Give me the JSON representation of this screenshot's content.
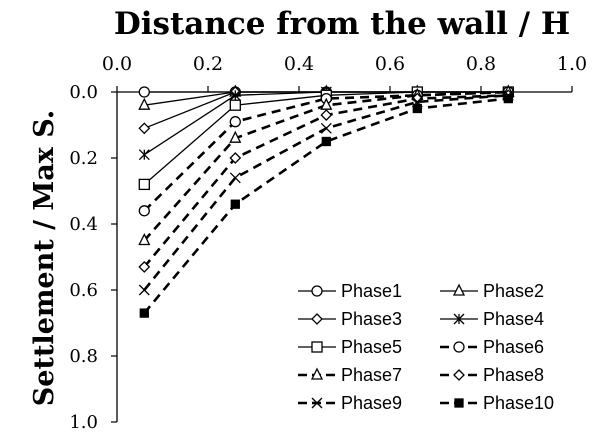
{
  "chart_data": {
    "type": "line",
    "title": "Distance from the wall / H",
    "xlabel": "Distance from the wall / H",
    "ylabel": "Settlement / Max S.",
    "xlim": [
      0.0,
      1.0
    ],
    "ylim": [
      0.0,
      1.0
    ],
    "x_axis_position": "top",
    "y_axis_inverted": true,
    "x_ticks": [
      "0.0",
      "0.2",
      "0.4",
      "0.6",
      "0.8",
      "1.0"
    ],
    "y_ticks": [
      "0.0",
      "0.2",
      "0.4",
      "0.6",
      "0.8",
      "1.0"
    ],
    "grid": false,
    "legend_position": "bottom-right",
    "x": [
      0.06,
      0.26,
      0.46,
      0.66,
      0.86
    ],
    "series": [
      {
        "name": "Phase1",
        "marker": "circle-open",
        "line": "solid",
        "values": [
          0.0,
          0.0,
          0.0,
          0.0,
          0.0
        ]
      },
      {
        "name": "Phase2",
        "marker": "triangle-open",
        "line": "solid",
        "values": [
          0.04,
          0.0,
          0.0,
          0.0,
          0.0
        ]
      },
      {
        "name": "Phase3",
        "marker": "diamond-open",
        "line": "solid",
        "values": [
          0.11,
          0.0,
          0.0,
          0.0,
          0.0
        ]
      },
      {
        "name": "Phase4",
        "marker": "star",
        "line": "solid",
        "values": [
          0.19,
          0.01,
          0.0,
          0.0,
          0.0
        ]
      },
      {
        "name": "Phase5",
        "marker": "square-open",
        "line": "solid",
        "values": [
          0.28,
          0.04,
          0.01,
          0.0,
          0.0
        ]
      },
      {
        "name": "Phase6",
        "marker": "circle-open",
        "line": "dashed",
        "values": [
          0.36,
          0.09,
          0.02,
          0.01,
          0.0
        ]
      },
      {
        "name": "Phase7",
        "marker": "triangle-open",
        "line": "dashed",
        "values": [
          0.45,
          0.14,
          0.04,
          0.01,
          0.0
        ]
      },
      {
        "name": "Phase8",
        "marker": "diamond-open",
        "line": "dashed",
        "values": [
          0.53,
          0.2,
          0.07,
          0.02,
          0.01
        ]
      },
      {
        "name": "Phase9",
        "marker": "x",
        "line": "dashed",
        "values": [
          0.6,
          0.26,
          0.11,
          0.03,
          0.01
        ]
      },
      {
        "name": "Phase10",
        "marker": "square-filled",
        "line": "dashed",
        "values": [
          0.67,
          0.34,
          0.15,
          0.05,
          0.02
        ]
      }
    ]
  }
}
